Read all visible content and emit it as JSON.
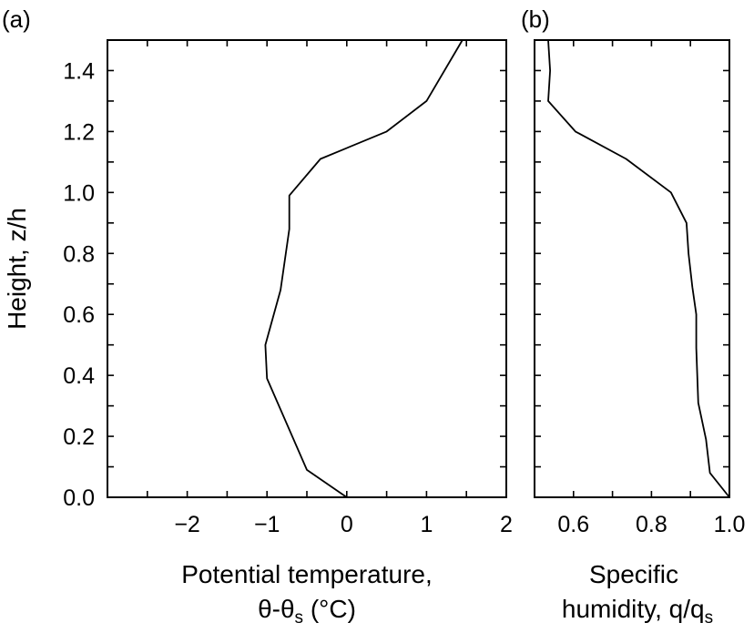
{
  "chart_data": [
    {
      "type": "line",
      "panel_label": "(a)",
      "xlabel_line1": "Potential temperature,",
      "xlabel_line2_main": "θ-θ",
      "xlabel_line2_sub": "s",
      "xlabel_line2_unit": " (°C)",
      "ylabel": "Height, z/h",
      "xlim": [
        -3,
        2
      ],
      "ylim": [
        0,
        1.5
      ],
      "xticks": [
        -2,
        -1,
        0,
        1,
        2
      ],
      "xtick_labels": [
        "−2",
        "−1",
        "0",
        "1",
        "2"
      ],
      "yticks": [
        0,
        0.2,
        0.4,
        0.6,
        0.8,
        1.0,
        1.2,
        1.4
      ],
      "ytick_labels": [
        "0.0",
        "0.2",
        "0.4",
        "0.6",
        "0.8",
        "1.0",
        "1.2",
        "1.4"
      ],
      "x": [
        0,
        -0.5,
        -1.0,
        -1.02,
        -0.83,
        -0.72,
        -0.72,
        -0.33,
        0.5,
        1.0,
        1.45
      ],
      "y": [
        0,
        0.09,
        0.39,
        0.5,
        0.68,
        0.88,
        0.99,
        1.11,
        1.2,
        1.3,
        1.5
      ]
    },
    {
      "type": "line",
      "panel_label": "(b)",
      "xlabel_line1": "Specific",
      "xlabel_line2_main": "humidity, q/q",
      "xlabel_line2_sub": "s",
      "xlim": [
        0.5,
        1.0
      ],
      "ylim": [
        0,
        1.5
      ],
      "xticks": [
        0.6,
        0.8,
        1.0
      ],
      "xtick_labels": [
        "0.6",
        "0.8",
        "1.0"
      ],
      "yticks": [
        0,
        0.2,
        0.4,
        0.6,
        0.8,
        1.0,
        1.2,
        1.4
      ],
      "x": [
        1.0,
        0.95,
        0.94,
        0.92,
        0.915,
        0.915,
        0.905,
        0.895,
        0.89,
        0.85,
        0.735,
        0.605,
        0.535,
        0.54,
        0.535
      ],
      "y": [
        0,
        0.08,
        0.19,
        0.31,
        0.49,
        0.6,
        0.69,
        0.8,
        0.9,
        1.0,
        1.11,
        1.2,
        1.3,
        1.4,
        1.5
      ]
    }
  ]
}
